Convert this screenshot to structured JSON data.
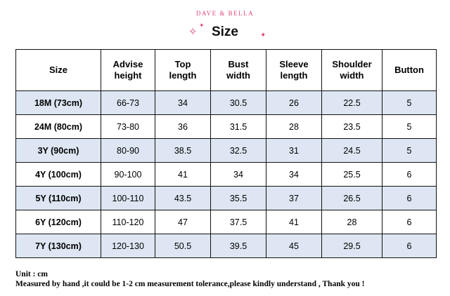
{
  "brand": "DAVE & BELLA",
  "title": "Size",
  "icons": [
    "sparkle-icon",
    "sparkle-small-icon",
    "sparkle-right-icon"
  ],
  "accent_color": "#e0457b",
  "row_shade_color": "#dde6f2",
  "table": {
    "headers": [
      [
        "Size"
      ],
      [
        "Advise",
        "height"
      ],
      [
        "Top",
        "length"
      ],
      [
        "Bust",
        "width"
      ],
      [
        "Sleeve",
        "length"
      ],
      [
        "Shoulder",
        "width"
      ],
      [
        "Button"
      ]
    ],
    "rows": [
      [
        "18M (73cm)",
        "66-73",
        "34",
        "30.5",
        "26",
        "22.5",
        "5"
      ],
      [
        "24M (80cm)",
        "73-80",
        "36",
        "31.5",
        "28",
        "23.5",
        "5"
      ],
      [
        "3Y (90cm)",
        "80-90",
        "38.5",
        "32.5",
        "31",
        "24.5",
        "5"
      ],
      [
        "4Y (100cm)",
        "90-100",
        "41",
        "34",
        "34",
        "25.5",
        "6"
      ],
      [
        "5Y (110cm)",
        "100-110",
        "43.5",
        "35.5",
        "37",
        "26.5",
        "6"
      ],
      [
        "6Y (120cm)",
        "110-120",
        "47",
        "37.5",
        "41",
        "28",
        "6"
      ],
      [
        "7Y (130cm)",
        "120-130",
        "50.5",
        "39.5",
        "45",
        "29.5",
        "6"
      ]
    ]
  },
  "notes": {
    "unit": "Unit : cm",
    "disclaimer": "Measured by hand ,it could be 1-2 cm measurement tolerance,please kindly understand , Thank you !"
  }
}
